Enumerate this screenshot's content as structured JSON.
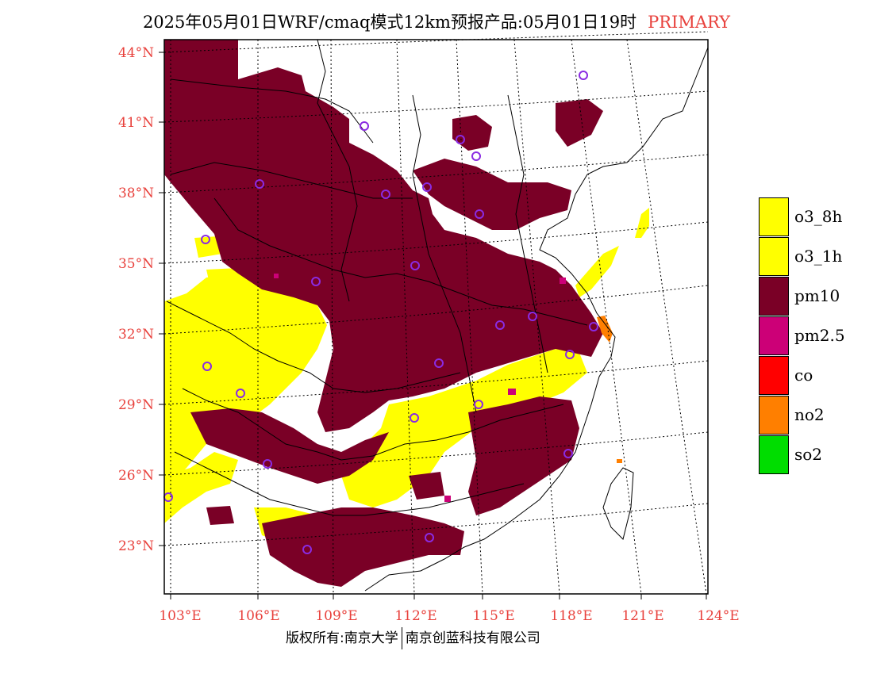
{
  "title": {
    "main": "2025年05月01日WRF/cmaq模式12km预报产品:05月01日19时",
    "tag": "PRIMARY"
  },
  "lat_labels": [
    "44°N",
    "41°N",
    "38°N",
    "35°N",
    "32°N",
    "29°N",
    "26°N",
    "23°N"
  ],
  "lon_labels": [
    "103°E",
    "106°E",
    "109°E",
    "112°E",
    "115°E",
    "118°E",
    "121°E",
    "124°E"
  ],
  "legend": [
    {
      "label": "o3_8h",
      "color": "#ffff00"
    },
    {
      "label": "o3_1h",
      "color": "#ffff00"
    },
    {
      "label": "pm10",
      "color": "#7a0026"
    },
    {
      "label": "pm2.5",
      "color": "#cc0077"
    },
    {
      "label": "co",
      "color": "#ff0000"
    },
    {
      "label": "no2",
      "color": "#ff7f00"
    },
    {
      "label": "so2",
      "color": "#00dd00"
    }
  ],
  "copyright": {
    "left": "版权所有:南京大学",
    "right": "南京创蓝科技有限公司"
  },
  "colors": {
    "pm10": "#7a0026",
    "o3": "#ffff00",
    "pm25": "#cc0077",
    "no2": "#ff7f00",
    "station": "#8a2be2",
    "axis_label": "#e8413c"
  }
}
